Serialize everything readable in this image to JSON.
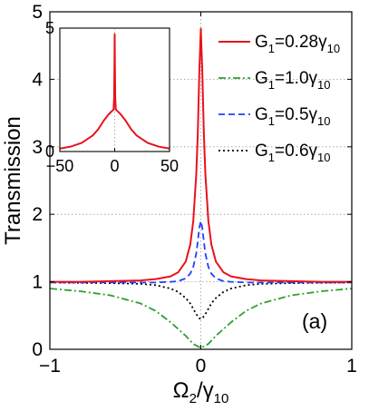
{
  "chart_data": [
    {
      "type": "line",
      "panel_label": "(a)",
      "xlabel_main": "Ω",
      "xlabel_sub": "2",
      "xlabel_mid": "/γ",
      "xlabel_sub2": "10",
      "ylabel": "Transmission",
      "xlim": [
        -1,
        1
      ],
      "ylim": [
        0,
        5
      ],
      "x_ticks": [
        -1,
        0,
        1
      ],
      "x_tick_labels": [
        "−1",
        "0",
        "1"
      ],
      "y_ticks": [
        0,
        1,
        2,
        3,
        4,
        5
      ],
      "y_tick_labels": [
        "0",
        "1",
        "2",
        "3",
        "4",
        "5"
      ],
      "grid": true,
      "legend_position": "top-right",
      "series": [
        {
          "name_main": "G",
          "name_sub": "1",
          "name_mid": "=0.28γ",
          "name_sub2": "10",
          "color": "#e8121b",
          "dash": "solid",
          "x": [
            -1,
            -0.8,
            -0.6,
            -0.4,
            -0.3,
            -0.2,
            -0.15,
            -0.1,
            -0.07,
            -0.05,
            -0.03,
            -0.02,
            -0.01,
            0,
            0.01,
            0.02,
            0.03,
            0.05,
            0.07,
            0.1,
            0.15,
            0.2,
            0.3,
            0.4,
            0.6,
            0.8,
            1
          ],
          "y": [
            1.0,
            1.0,
            1.01,
            1.02,
            1.04,
            1.08,
            1.14,
            1.3,
            1.55,
            1.9,
            2.6,
            3.2,
            4.1,
            4.75,
            4.1,
            3.2,
            2.6,
            1.9,
            1.55,
            1.3,
            1.14,
            1.08,
            1.04,
            1.02,
            1.01,
            1.0,
            1.0
          ]
        },
        {
          "name_main": "G",
          "name_sub": "1",
          "name_mid": "=1.0γ",
          "name_sub2": "10",
          "color": "#2ca02c",
          "dash": "dashdot",
          "x": [
            -1,
            -0.8,
            -0.6,
            -0.4,
            -0.3,
            -0.2,
            -0.15,
            -0.1,
            -0.05,
            0,
            0.05,
            0.1,
            0.15,
            0.2,
            0.3,
            0.4,
            0.6,
            0.8,
            1
          ],
          "y": [
            0.9,
            0.86,
            0.8,
            0.68,
            0.57,
            0.4,
            0.3,
            0.2,
            0.08,
            0.02,
            0.08,
            0.2,
            0.3,
            0.4,
            0.57,
            0.68,
            0.8,
            0.86,
            0.9
          ]
        },
        {
          "name_main": "G",
          "name_sub": "1",
          "name_mid": "=0.5γ",
          "name_sub2": "10",
          "color": "#1f3fff",
          "dash": "dashed",
          "x": [
            -1,
            -0.6,
            -0.3,
            -0.2,
            -0.15,
            -0.1,
            -0.07,
            -0.05,
            -0.03,
            -0.02,
            -0.01,
            0,
            0.01,
            0.02,
            0.03,
            0.05,
            0.07,
            0.1,
            0.15,
            0.2,
            0.3,
            0.6,
            1
          ],
          "y": [
            0.99,
            0.99,
            0.99,
            1.0,
            1.01,
            1.05,
            1.12,
            1.22,
            1.42,
            1.6,
            1.8,
            1.9,
            1.8,
            1.6,
            1.42,
            1.22,
            1.12,
            1.05,
            1.01,
            1.0,
            0.99,
            0.99,
            0.99
          ]
        },
        {
          "name_main": "G",
          "name_sub": "1",
          "name_mid": "=0.6γ",
          "name_sub2": "10",
          "color": "#000000",
          "dash": "dotted",
          "x": [
            -1,
            -0.6,
            -0.4,
            -0.3,
            -0.2,
            -0.15,
            -0.1,
            -0.07,
            -0.05,
            -0.03,
            -0.01,
            0,
            0.01,
            0.03,
            0.05,
            0.07,
            0.1,
            0.15,
            0.2,
            0.3,
            0.4,
            0.6,
            1
          ],
          "y": [
            0.99,
            0.98,
            0.97,
            0.95,
            0.9,
            0.85,
            0.76,
            0.68,
            0.6,
            0.52,
            0.46,
            0.45,
            0.46,
            0.52,
            0.6,
            0.68,
            0.76,
            0.85,
            0.9,
            0.95,
            0.97,
            0.98,
            0.99
          ]
        }
      ]
    },
    {
      "type": "line",
      "inset": true,
      "xlim": [
        -50,
        50
      ],
      "ylim": [
        0,
        5
      ],
      "x_ticks": [
        -50,
        0,
        50
      ],
      "x_tick_labels": [
        "−50",
        "0",
        "50"
      ],
      "y_ticks": [
        0,
        5
      ],
      "y_tick_labels": [
        "0",
        "5"
      ],
      "grid": true,
      "series": [
        {
          "color": "#e8121b",
          "dash": "solid",
          "x": [
            -50,
            -40,
            -30,
            -20,
            -15,
            -10,
            -6,
            -3,
            -1,
            -0.5,
            -0.2,
            0,
            0.2,
            0.5,
            1,
            3,
            6,
            10,
            15,
            20,
            30,
            40,
            50
          ],
          "y": [
            0.12,
            0.2,
            0.35,
            0.65,
            0.9,
            1.25,
            1.48,
            1.62,
            1.7,
            2.2,
            3.5,
            4.75,
            3.5,
            2.2,
            1.7,
            1.62,
            1.48,
            1.25,
            0.9,
            0.65,
            0.35,
            0.2,
            0.12
          ]
        }
      ]
    }
  ]
}
